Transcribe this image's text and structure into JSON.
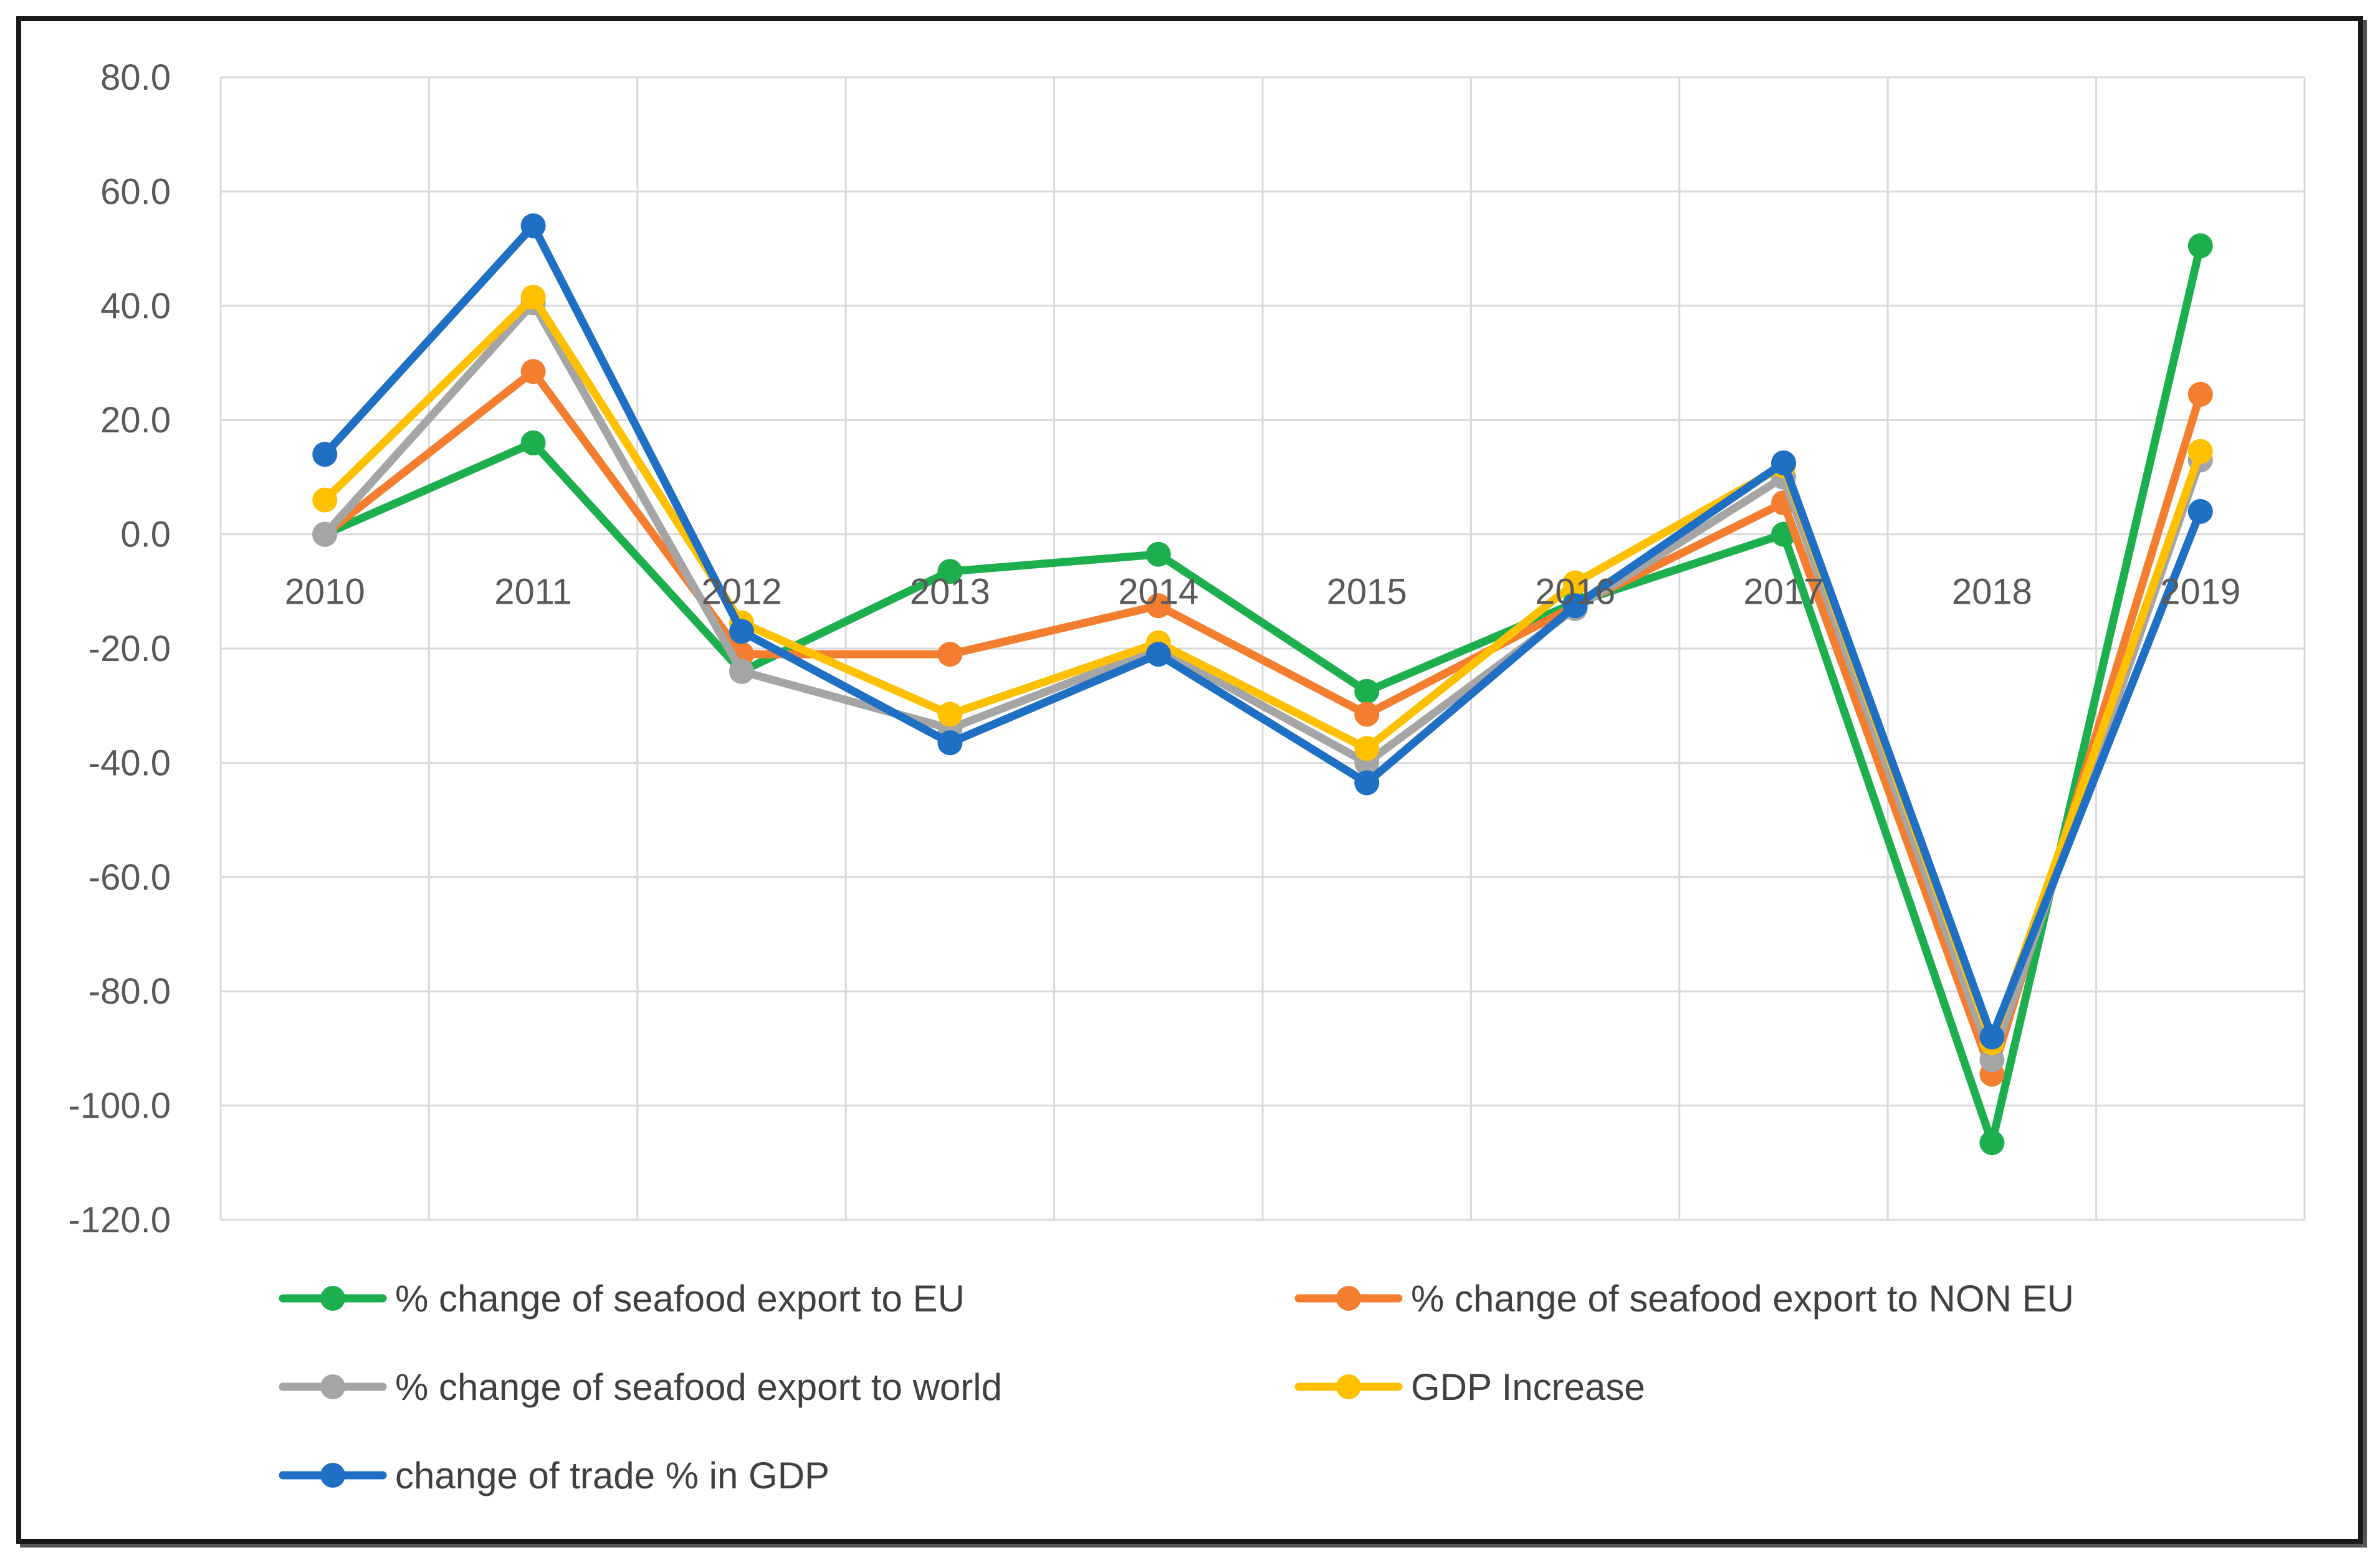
{
  "chart_data": {
    "type": "line",
    "title": "",
    "xlabel": "",
    "ylabel": "",
    "categories": [
      "2010",
      "2011",
      "2012",
      "2013",
      "2014",
      "2015",
      "2016",
      "2017",
      "2018",
      "2019"
    ],
    "ylim": [
      -120,
      80
    ],
    "yticks": [
      80,
      60,
      40,
      20,
      0,
      -20,
      -40,
      -60,
      -80,
      -100,
      -120
    ],
    "ytick_labels": [
      "80.0",
      "60.0",
      "40.0",
      "20.0",
      "0.0",
      "-20.0",
      "-40.0",
      "-60.0",
      "-80.0",
      "-100.0",
      "-120.0"
    ],
    "grid": true,
    "legend_position": "bottom",
    "series": [
      {
        "name": "% change of seafood export to EU",
        "color": "#1DAF4E",
        "values": [
          0,
          16,
          -24,
          -6.5,
          -3.5,
          -27.5,
          -12,
          0,
          -106.5,
          50.5
        ]
      },
      {
        "name": "% change of seafood export to NON EU",
        "color": "#F47E30",
        "values": [
          0,
          28.5,
          -21,
          -21,
          -12.5,
          -31.5,
          -12.5,
          5.5,
          -94.5,
          24.5
        ]
      },
      {
        "name": "% change of seafood export to world",
        "color": "#A5A5A5",
        "values": [
          0,
          40.5,
          -24,
          -34,
          -20,
          -40,
          -13,
          10,
          -92,
          13
        ]
      },
      {
        "name": "GDP Increase",
        "color": "#FFC000",
        "values": [
          6,
          41.5,
          -15.5,
          -31.5,
          -19,
          -37.5,
          -8.5,
          12,
          -89,
          14.5
        ]
      },
      {
        "name": "change of trade % in GDP",
        "color": "#1F6FC4",
        "values": [
          14,
          54,
          -17,
          -36.5,
          -21,
          -43.5,
          -12.5,
          12.5,
          -88,
          4
        ]
      }
    ]
  }
}
